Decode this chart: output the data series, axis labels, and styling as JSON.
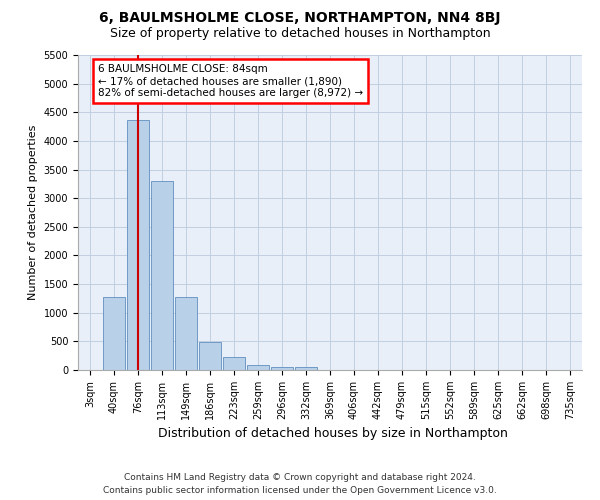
{
  "title": "6, BAULMSHOLME CLOSE, NORTHAMPTON, NN4 8BJ",
  "subtitle": "Size of property relative to detached houses in Northampton",
  "xlabel": "Distribution of detached houses by size in Northampton",
  "ylabel": "Number of detached properties",
  "footnote1": "Contains HM Land Registry data © Crown copyright and database right 2024.",
  "footnote2": "Contains public sector information licensed under the Open Government Licence v3.0.",
  "annotation_title": "6 BAULMSHOLME CLOSE: 84sqm",
  "annotation_line2": "← 17% of detached houses are smaller (1,890)",
  "annotation_line3": "82% of semi-detached houses are larger (8,972) →",
  "bar_labels": [
    "3sqm",
    "40sqm",
    "76sqm",
    "113sqm",
    "149sqm",
    "186sqm",
    "223sqm",
    "259sqm",
    "296sqm",
    "332sqm",
    "369sqm",
    "406sqm",
    "442sqm",
    "479sqm",
    "515sqm",
    "552sqm",
    "589sqm",
    "625sqm",
    "662sqm",
    "698sqm",
    "735sqm"
  ],
  "bar_values": [
    0,
    1270,
    4360,
    3300,
    1270,
    490,
    220,
    90,
    60,
    60,
    0,
    0,
    0,
    0,
    0,
    0,
    0,
    0,
    0,
    0,
    0
  ],
  "bar_color": "#b8d0e8",
  "bar_edge_color": "#6090c0",
  "vline_x_idx": 2,
  "vline_color": "#cc0000",
  "ylim_max": 5500,
  "yticks": [
    0,
    500,
    1000,
    1500,
    2000,
    2500,
    3000,
    3500,
    4000,
    4500,
    5000,
    5500
  ],
  "bg_color": "#e8eff8",
  "grid_color": "#c0cfe0",
  "title_fontsize": 10,
  "subtitle_fontsize": 9,
  "ylabel_fontsize": 8,
  "xlabel_fontsize": 9,
  "tick_fontsize": 7,
  "footnote_fontsize": 6.5,
  "ann_fontsize": 7.5
}
